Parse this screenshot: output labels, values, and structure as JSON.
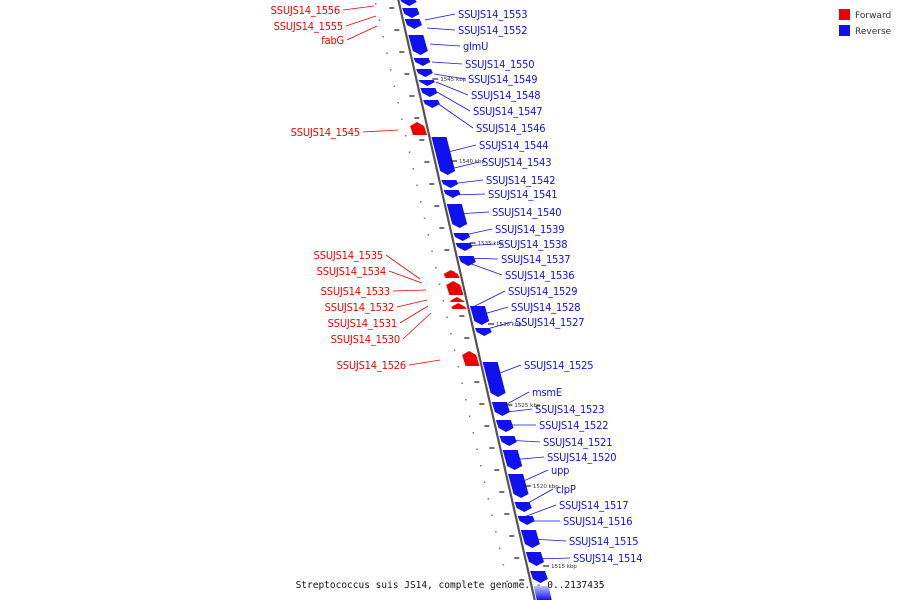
{
  "caption": "Streptococcus suis JS14, complete genome. - 0..2137435",
  "colors": {
    "forward": "#ee0000",
    "reverse": "#1111ee",
    "axis": "#555555"
  },
  "legend": [
    {
      "label": "Forward",
      "strand": "forward"
    },
    {
      "label": "Reverse",
      "strand": "reverse"
    }
  ],
  "ticks": [
    "1545 kbp",
    "1540 kbp",
    "1535 kbp",
    "1530 kbp",
    "1525 kbp",
    "1520 kbp",
    "1515 kbp"
  ],
  "features": [
    {
      "name": "SSUJS14_1556",
      "strand": "forward"
    },
    {
      "name": "SSUJS14_1555",
      "strand": "forward"
    },
    {
      "name": "fabG",
      "strand": "forward"
    },
    {
      "name": "SSUJS14_1553",
      "strand": "reverse"
    },
    {
      "name": "SSUJS14_1552",
      "strand": "reverse"
    },
    {
      "name": "glmU",
      "strand": "reverse"
    },
    {
      "name": "SSUJS14_1550",
      "strand": "reverse"
    },
    {
      "name": "SSUJS14_1549",
      "strand": "reverse"
    },
    {
      "name": "SSUJS14_1548",
      "strand": "reverse"
    },
    {
      "name": "SSUJS14_1547",
      "strand": "reverse"
    },
    {
      "name": "SSUJS14_1546",
      "strand": "reverse"
    },
    {
      "name": "SSUJS14_1545",
      "strand": "forward"
    },
    {
      "name": "SSUJS14_1544",
      "strand": "reverse"
    },
    {
      "name": "SSUJS14_1543",
      "strand": "reverse"
    },
    {
      "name": "SSUJS14_1542",
      "strand": "reverse"
    },
    {
      "name": "SSUJS14_1541",
      "strand": "reverse"
    },
    {
      "name": "SSUJS14_1540",
      "strand": "reverse"
    },
    {
      "name": "SSUJS14_1539",
      "strand": "reverse"
    },
    {
      "name": "SSUJS14_1538",
      "strand": "reverse"
    },
    {
      "name": "SSUJS14_1537",
      "strand": "reverse"
    },
    {
      "name": "SSUJS14_1536",
      "strand": "reverse"
    },
    {
      "name": "SSUJS14_1535",
      "strand": "forward"
    },
    {
      "name": "SSUJS14_1534",
      "strand": "forward"
    },
    {
      "name": "SSUJS14_1533",
      "strand": "forward"
    },
    {
      "name": "SSUJS14_1532",
      "strand": "forward"
    },
    {
      "name": "SSUJS14_1531",
      "strand": "forward"
    },
    {
      "name": "SSUJS14_1530",
      "strand": "forward"
    },
    {
      "name": "SSUJS14_1529",
      "strand": "reverse"
    },
    {
      "name": "SSUJS14_1528",
      "strand": "reverse"
    },
    {
      "name": "SSUJS14_1527",
      "strand": "reverse"
    },
    {
      "name": "SSUJS14_1526",
      "strand": "forward"
    },
    {
      "name": "SSUJS14_1525",
      "strand": "reverse"
    },
    {
      "name": "msmE",
      "strand": "reverse"
    },
    {
      "name": "SSUJS14_1523",
      "strand": "reverse"
    },
    {
      "name": "SSUJS14_1522",
      "strand": "reverse"
    },
    {
      "name": "SSUJS14_1521",
      "strand": "reverse"
    },
    {
      "name": "SSUJS14_1520",
      "strand": "reverse"
    },
    {
      "name": "upp",
      "strand": "reverse"
    },
    {
      "name": "clpP",
      "strand": "reverse"
    },
    {
      "name": "SSUJS14_1517",
      "strand": "reverse"
    },
    {
      "name": "SSUJS14_1516",
      "strand": "reverse"
    },
    {
      "name": "SSUJS14_1515",
      "strand": "reverse"
    },
    {
      "name": "SSUJS14_1514",
      "strand": "reverse"
    }
  ]
}
